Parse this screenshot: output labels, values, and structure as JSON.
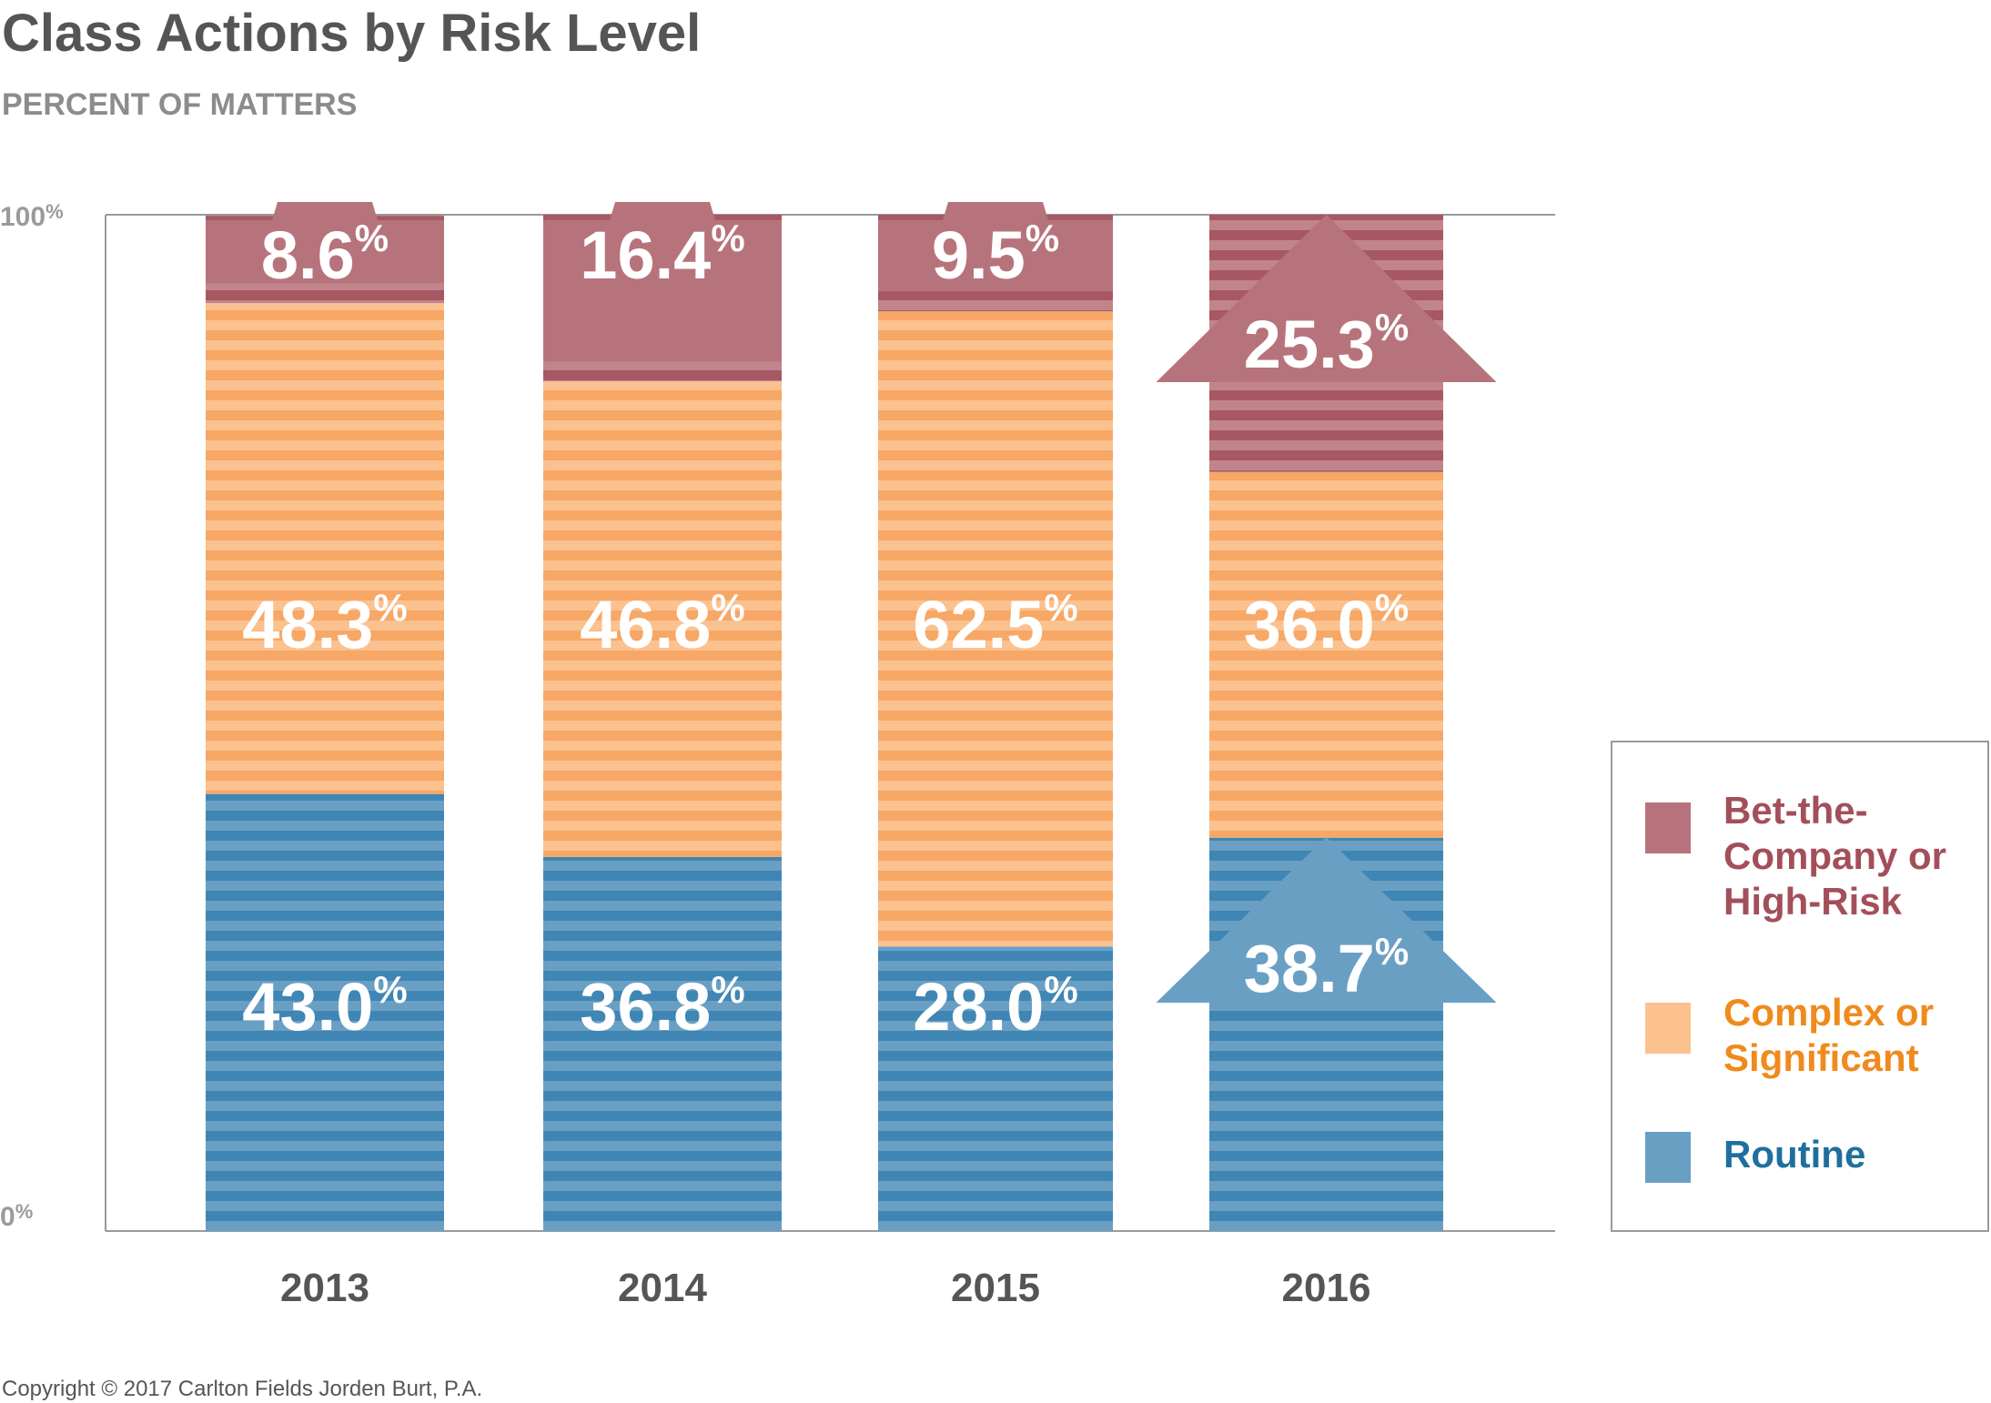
{
  "chart_data": {
    "type": "bar",
    "stacked": true,
    "title": "Class Actions by Risk Level",
    "subtitle": "PERCENT OF MATTERS",
    "categories": [
      "2013",
      "2014",
      "2015",
      "2016"
    ],
    "series": [
      {
        "name": "Routine",
        "values": [
          43.0,
          36.8,
          28.0,
          38.7
        ],
        "labels": [
          "43.0",
          "36.8",
          "28.0",
          "38.7"
        ],
        "color": "#4a8db8"
      },
      {
        "name": "Complex or Significant",
        "values": [
          48.3,
          46.8,
          62.5,
          36.0
        ],
        "labels": [
          "48.3",
          "46.8",
          "62.5",
          "36.0"
        ],
        "color": "#f7a766"
      },
      {
        "name": "Bet-the-Company or High-Risk",
        "values": [
          8.6,
          16.4,
          9.5,
          25.3
        ],
        "labels": [
          "8.6",
          "16.4",
          "9.5",
          "25.3"
        ],
        "color": "#b36d76"
      }
    ],
    "label_suffix": "%",
    "ylim": [
      0,
      100
    ],
    "ytick_labels": [
      "0%",
      "100%"
    ],
    "legend_position": "right",
    "legend_labels": {
      "Bet-the-Company or High-Risk": "Bet-the-Company or High-Risk",
      "Complex or Significant": "Complex or Significant",
      "Routine": "Routine"
    },
    "grid": false,
    "highlighted_category": "2016"
  },
  "footer": {
    "copyright": "Copyright © 2017 Carlton Fields Jorden Burt, P.A."
  }
}
